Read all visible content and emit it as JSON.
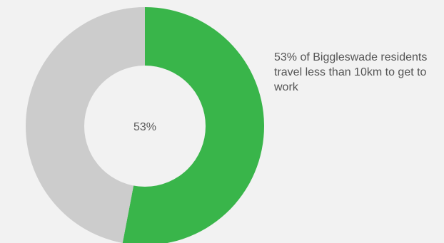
{
  "chart_data": {
    "type": "pie",
    "style": "donut",
    "center_label": "53%",
    "slices": [
      {
        "value": 53,
        "color": "#39b54a"
      },
      {
        "value": 47,
        "color": "#cccccc"
      }
    ],
    "start_angle_deg": 0,
    "direction": "clockwise",
    "inner_circle_color": "#f2f2f2",
    "annotation": "53% of Biggleswade residents travel less than 10km to get to work"
  }
}
